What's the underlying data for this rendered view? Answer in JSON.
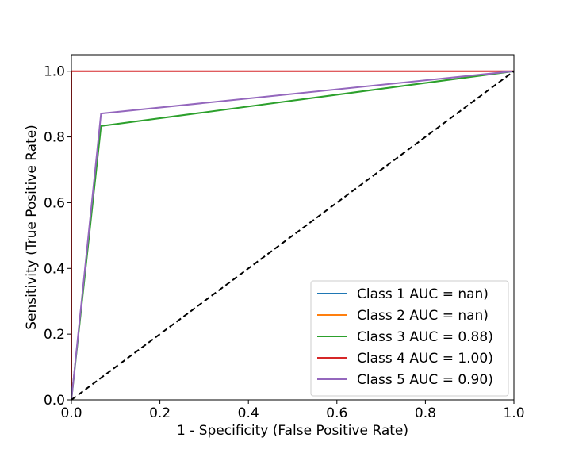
{
  "chart_data": {
    "type": "line",
    "title": "",
    "xlabel": "1 - Specificity (False Positive Rate)",
    "ylabel": "Sensitivity (True Positive Rate)",
    "xlim": [
      0.0,
      1.0
    ],
    "ylim": [
      0.0,
      1.05
    ],
    "xticks": [
      "0.0",
      "0.2",
      "0.4",
      "0.6",
      "0.8",
      "1.0"
    ],
    "yticks": [
      "0.0",
      "0.2",
      "0.4",
      "0.6",
      "0.8",
      "1.0"
    ],
    "grid": false,
    "legend_position": "lower right",
    "series": [
      {
        "name": "Class 1 AUC = nan)",
        "color": "#1f77b4",
        "x": [],
        "y": []
      },
      {
        "name": "Class 2 AUC = nan)",
        "color": "#ff7f0e",
        "x": [],
        "y": []
      },
      {
        "name": "Class 3 AUC = 0.88)",
        "color": "#2ca02c",
        "x": [
          0.0,
          0.067,
          1.0
        ],
        "y": [
          0.0,
          0.833,
          1.0
        ]
      },
      {
        "name": "Class 4 AUC = 1.00)",
        "color": "#d62728",
        "x": [
          0.0,
          0.0,
          1.0
        ],
        "y": [
          0.0,
          1.0,
          1.0
        ]
      },
      {
        "name": "Class 5 AUC = 0.90)",
        "color": "#9467bd",
        "x": [
          0.0,
          0.067,
          1.0
        ],
        "y": [
          0.0,
          0.871,
          1.0
        ]
      }
    ],
    "reference_line": {
      "x": [
        0.0,
        1.0
      ],
      "y": [
        0.0,
        1.0
      ],
      "color": "#000000",
      "style": "dashed"
    }
  }
}
